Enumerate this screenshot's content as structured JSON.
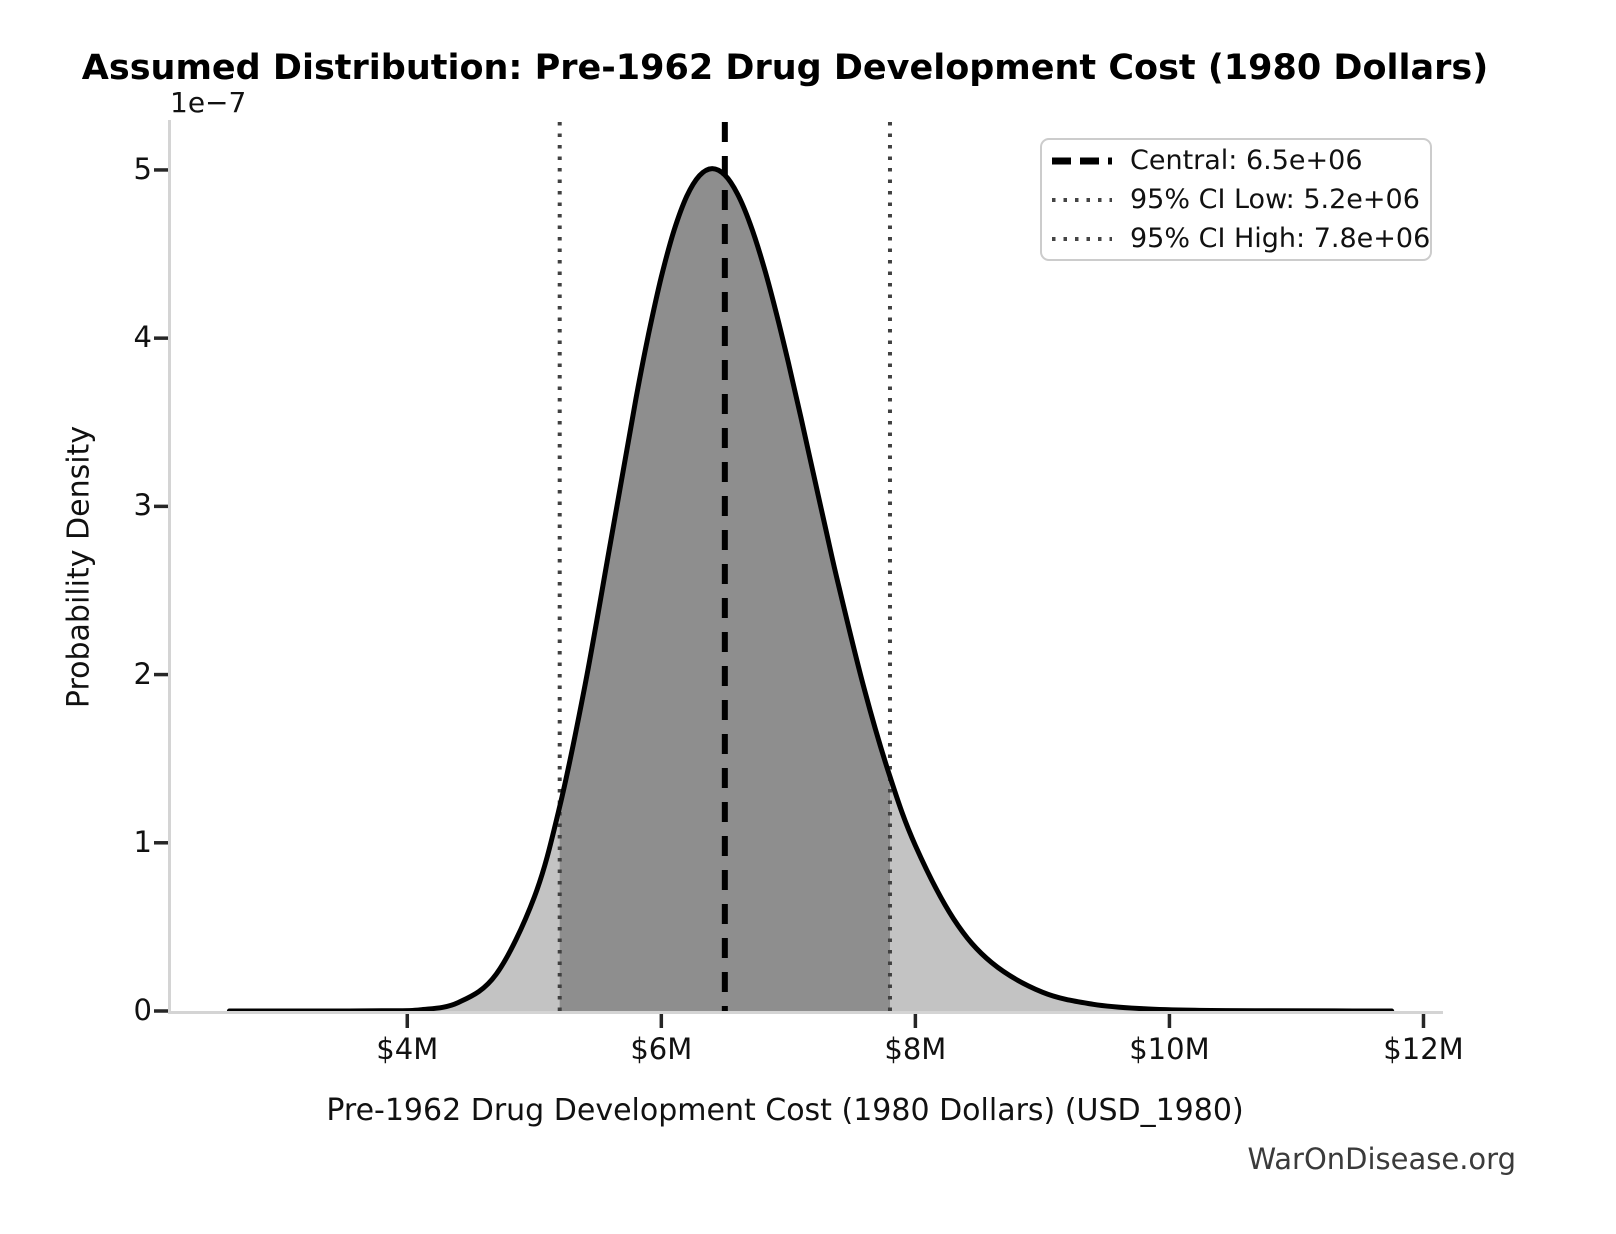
{
  "figure": {
    "watermark": "WarOnDisease.org"
  },
  "chart_data": {
    "type": "area",
    "subtype": "probability-density-curve",
    "title": "Assumed Distribution: Pre-1962 Drug Development Cost (1980 Dollars)",
    "xlabel": "Pre-1962 Drug Development Cost (1980 Dollars) (USD_1980)",
    "ylabel": "Probability Density",
    "y_scale_offset_label": "1e−7",
    "x_tick_labels": [
      "$4M",
      "$6M",
      "$8M",
      "$10M",
      "$12M"
    ],
    "x_tick_values_millions": [
      4,
      6,
      8,
      10,
      12
    ],
    "y_tick_labels": [
      "0",
      "1",
      "2",
      "3",
      "4",
      "5"
    ],
    "y_tick_values_1e7": [
      0,
      1,
      2,
      3,
      4,
      5
    ],
    "xlim_millions": [
      2.14,
      12.13
    ],
    "ylim_1e7": [
      0,
      5.285
    ],
    "grid": false,
    "legend_position": "upper right",
    "central_value": 6500000,
    "ci_low_value": 5200000,
    "ci_high_value": 7800000,
    "legend": {
      "entries": [
        {
          "label": "Central: 6.5e+06",
          "style": "dashed",
          "color": "#000000"
        },
        {
          "label": "95% CI Low: 5.2e+06",
          "style": "dotted",
          "color": "#444444"
        },
        {
          "label": "95% CI High: 7.8e+06",
          "style": "dotted",
          "color": "#444444"
        }
      ]
    },
    "curve": {
      "x_millions": [
        2.6,
        3.0,
        3.4,
        3.8,
        4.1,
        4.4,
        4.7,
        5.0,
        5.2,
        5.4,
        5.6,
        5.8,
        5.9,
        6.0,
        6.1,
        6.2,
        6.3,
        6.4,
        6.5,
        6.6,
        6.7,
        6.8,
        6.9,
        7.0,
        7.1,
        7.2,
        7.3,
        7.4,
        7.6,
        7.8,
        8.0,
        8.3,
        8.6,
        9.0,
        9.4,
        9.8,
        10.2,
        10.8,
        11.3,
        11.75
      ],
      "density_1e7": [
        0,
        0,
        0.0001,
        0.001,
        0.007,
        0.05,
        0.219,
        0.677,
        1.215,
        1.939,
        2.785,
        3.639,
        4.026,
        4.364,
        4.64,
        4.843,
        4.966,
        5.008,
        4.97,
        4.857,
        4.678,
        4.444,
        4.165,
        3.854,
        3.524,
        3.184,
        2.845,
        2.515,
        1.907,
        1.393,
        0.983,
        0.549,
        0.288,
        0.112,
        0.04,
        0.013,
        0.004,
        0.001,
        0.0003,
        0
      ]
    },
    "peak": {
      "x_millions": 6.4,
      "density_1e7": 5.01
    },
    "colors": {
      "curve": "#000000",
      "fill": "#c3c3c3",
      "fill_ci": "#8e8e8e",
      "central_line": "#000000",
      "ci_line": "#404040",
      "spine": "#d4d4d4",
      "tick": "#262626",
      "text": "#111111",
      "watermark": "#3b3b3b"
    }
  }
}
